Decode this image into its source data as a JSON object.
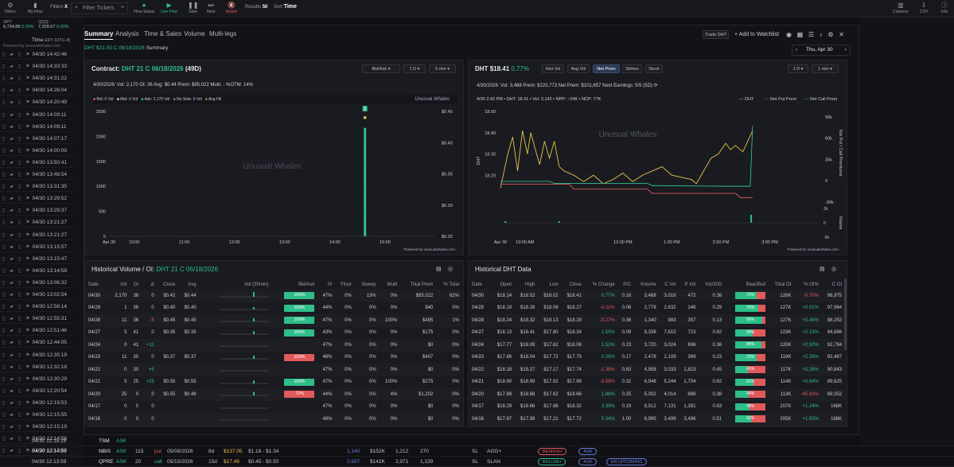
{
  "topbar": {
    "items": [
      {
        "label": "Filters",
        "icon": "gear-icon"
      },
      {
        "label": "My Flow",
        "icon": "bookmark-icon"
      },
      {
        "label": "Filters",
        "icon": "filter-icon"
      },
      {
        "label": "Flow Status",
        "icon": "status-icon"
      },
      {
        "label": "Live Flow",
        "icon": "play-icon"
      },
      {
        "label": "Slow",
        "icon": "pause-icon"
      },
      {
        "label": "Next",
        "icon": "next-icon"
      },
      {
        "label": "Muted",
        "icon": "mute-icon"
      },
      {
        "label": "Results",
        "icon": ""
      },
      {
        "label": "Sort",
        "icon": ""
      },
      {
        "label": "Columns",
        "icon": "columns-icon"
      },
      {
        "label": "CSV",
        "icon": "download-icon"
      },
      {
        "label": "Info",
        "icon": "info-icon"
      }
    ],
    "filters_value": "X",
    "search_placeholder": "Filter Tickers",
    "results_value": "50",
    "sort_value": "Time"
  },
  "left": {
    "idx": [
      {
        "name": "SPY",
        "val": "6,734.89",
        "chg": "0.00%"
      },
      {
        "name": "QQQ",
        "val": "7,209.07",
        "chg": "0.00%"
      }
    ],
    "time_header": "Time",
    "tz": "EDT (UTC-4)",
    "powered": "Powered by unusualwhales.com",
    "times": [
      "04/30 14:42:46",
      "04/30 14:33:33",
      "04/30 14:31:22",
      "04/30 14:26:04",
      "04/30 14:20:49",
      "04/30 14:09:11",
      "04/30 14:09:11",
      "04/30 14:07:17",
      "04/30 14:00:09",
      "04/30 13:50:41",
      "04/30 13:49:54",
      "04/30 13:31:35",
      "04/30 13:29:52",
      "04/30 13:29:37",
      "04/30 13:21:27",
      "04/30 13:21:27",
      "04/30 13:15:57",
      "04/30 13:15:47",
      "04/30 13:14:58",
      "04/30 13:06:32",
      "04/30 13:02:54",
      "04/30 12:56:14",
      "04/30 12:55:31",
      "04/30 12:51:46",
      "04/30 12:44:05",
      "04/30 12:35:19",
      "04/30 12:32:18",
      "04/30 12:30:29",
      "04/30 12:20:54",
      "04/30 12:19:53",
      "04/30 12:15:55",
      "04/30 12:15:19",
      "04/30 12:14:59",
      "04/30 12:13:59"
    ]
  },
  "modal": {
    "tabs": [
      "Summary",
      "Analysis",
      "Time & Sales",
      "Volume",
      "Multi-legs"
    ],
    "subtitle_contract": "DHT $21.00 C 06/18/2026",
    "subtitle_tail": "Summary",
    "trade_btn": "Trade DHT",
    "watchlist": "+ Add to Watchlist",
    "date_nav": "Thu, Apr 30"
  },
  "contract_chart": {
    "label": "Contract:",
    "name": "DHT 21 C 06/18/2026",
    "dte": "(49D)",
    "sel1": "Bid/Ask",
    "sel2": "1 D",
    "sel3": "5 min",
    "stats": "4/30/2026:  Vol: 2,170  OI: 36  Avg: $0.44  Prem: $95,022  Multi: -  %OTM: 14%",
    "legend": [
      "Bid: 0 Vol",
      "Mid: 0 Vol",
      "Ask: 2,170 Vol",
      "No Side: 0 Vol",
      "Avg Fill"
    ],
    "brand": "Unusual Whales",
    "watermark": "Unusual Whales",
    "powered": "Powered by unusualwhales.com",
    "note": "S"
  },
  "stock_chart": {
    "ticker": "DHT",
    "price": "$18.41",
    "chg": "0.77%",
    "tabs": [
      "Hist Vol",
      "Avg Vol",
      "Net Prem",
      "Strikes",
      "Stock"
    ],
    "sel1": "1 D",
    "sel2": "1 min",
    "stats": "4/30/2026:  Vol: 3,488  Prem: $220,773  Net Prem: $101,657  Next Earnings: 5/5 (5D)",
    "net_prem_value": "$101,657",
    "hover": "4/30 2:42 PM • DHT: 18.41 • Vol: 2,142 • NPP: ~24K • NCP: 77K",
    "legend": [
      "DHT",
      "Net Put Prem",
      "Net Call Prem"
    ],
    "watermark": "Unusual Whales",
    "powered": "Powered by unusualwhales.com",
    "ylabel_left": "DHT",
    "ylabel_right": "Net Put / Call Premiums",
    "ylabel_vol": "Volume"
  },
  "hist_vol": {
    "title": "Historical Volume / OI:",
    "contract": "DHT 21 C 06/18/2026",
    "powered": "Powered by unusualwhales.com",
    "headers": [
      "Date",
      "Vol",
      "OI",
      "Δ",
      "Close",
      "Avg",
      "Vol (30min)",
      "Bid/Ask",
      "IV",
      "Floor",
      "Sweep",
      "Multi",
      "Total Prem",
      "% Total"
    ],
    "rows": [
      [
        "04/30",
        "2,170",
        "36",
        "0",
        "$0.42",
        "$0.44",
        "",
        "100%",
        "47%",
        "0%",
        "13%",
        "0%",
        "$95,022",
        "62%"
      ],
      [
        "04/29",
        "1",
        "36",
        "0",
        "$0.40",
        "$0.40",
        "",
        "100%",
        "44%",
        "0%",
        "0%",
        "0%",
        "$40",
        "0%"
      ],
      [
        "04/28",
        "11",
        "36",
        "-5",
        "$0.45",
        "$0.45",
        "",
        "100%",
        "47%",
        "0%",
        "0%",
        "100%",
        "$495",
        "1%"
      ],
      [
        "04/27",
        "5",
        "41",
        "0",
        "$0.35",
        "$0.35",
        "",
        "100%",
        "43%",
        "0%",
        "0%",
        "0%",
        "$175",
        "0%"
      ],
      [
        "04/24",
        "0",
        "41",
        "+11",
        "",
        "",
        "",
        "",
        "47%",
        "0%",
        "0%",
        "0%",
        "$0",
        "0%"
      ],
      [
        "04/23",
        "11",
        "30",
        "0",
        "$0.37",
        "$0.37",
        "",
        "100%",
        "48%",
        "0%",
        "0%",
        "0%",
        "$407",
        "0%"
      ],
      [
        "04/22",
        "0",
        "30",
        "+5",
        "",
        "",
        "",
        "",
        "47%",
        "0%",
        "0%",
        "0%",
        "$0",
        "0%"
      ],
      [
        "04/21",
        "5",
        "25",
        "+25",
        "$0.55",
        "$0.55",
        "",
        "100%",
        "47%",
        "0%",
        "0%",
        "100%",
        "$275",
        "0%"
      ],
      [
        "04/20",
        "25",
        "0",
        "0",
        "$0.55",
        "$0.48",
        "",
        "72%",
        "44%",
        "0%",
        "0%",
        "4%",
        "$1,202",
        "0%"
      ],
      [
        "04/17",
        "0",
        "0",
        "0",
        "",
        "",
        "",
        "",
        "47%",
        "0%",
        "0%",
        "0%",
        "$0",
        "0%"
      ],
      [
        "04/16",
        "0",
        "0",
        "0",
        "",
        "",
        "",
        "",
        "48%",
        "0%",
        "0%",
        "0%",
        "$0",
        "0%"
      ]
    ]
  },
  "hist_dht": {
    "title": "Historical DHT Data",
    "powered": "Powered by unusualwhales.com",
    "headers": [
      "Date",
      "Open",
      "High",
      "Low",
      "Close",
      "% Change",
      "P/C",
      "Volume",
      "C Vol",
      "P Vol",
      "Vol/30D",
      "Bear/Bull",
      "Total OI",
      "% OI%",
      "C OI",
      "P OI"
    ],
    "rows": [
      [
        "04/30",
        "$18.14",
        "$18.52",
        "$18.02",
        "$18.41",
        "0.77%",
        "0.16",
        "3,488",
        "3,016",
        "472",
        "0.36",
        "72%",
        "126K",
        "-0.70%",
        "96,975",
        "28,9"
      ],
      [
        "04/29",
        "$18.19",
        "$18.28",
        "$18.06",
        "$18.27",
        "-0.11%",
        "0.06",
        "2,778",
        "2,632",
        "146",
        "0.29",
        "75%",
        "127K",
        "+0.01%",
        "97,964",
        "28,5"
      ],
      [
        "04/28",
        "$18.24",
        "$18.32",
        "$18.13",
        "$18.29",
        "-0.27%",
        "0.36",
        "1,340",
        "983",
        "357",
        "0.13",
        "90%",
        "127K",
        "+3.46%",
        "98,253",
        "28,8"
      ],
      [
        "04/27",
        "$18.13",
        "$18.41",
        "$17.80",
        "$18.34",
        "1.55%",
        "0.09",
        "8,338",
        "7,615",
        "723",
        "0.82",
        "58%",
        "123K",
        "+2.13%",
        "94,886",
        "27,8"
      ],
      [
        "04/24",
        "$17.77",
        "$18.09",
        "$17.62",
        "$18.06",
        "1.52%",
        "0.23",
        "3,720",
        "3,024",
        "696",
        "0.36",
        "86%",
        "120K",
        "+0.50%",
        "92,794",
        "27,8"
      ],
      [
        "04/23",
        "$17.86",
        "$18.04",
        "$17.72",
        "$17.79",
        "0.28%",
        "0.17",
        "2,478",
        "2,109",
        "369",
        "0.23",
        "72%",
        "119K",
        "+2.26%",
        "92,487",
        "26,9"
      ],
      [
        "04/22",
        "$18.18",
        "$18.27",
        "$17.17",
        "$17.74",
        "-1.38%",
        "0.63",
        "4,958",
        "3,033",
        "1,823",
        "0.45",
        "41%",
        "117K",
        "+2.26%",
        "90,843",
        "25,8"
      ],
      [
        "04/21",
        "$18.90",
        "$18.99",
        "$17.92",
        "$17.99",
        "-3.59%",
        "0.32",
        "6,948",
        "5,244",
        "1,704",
        "0.62",
        "61%",
        "114K",
        "+0.84%",
        "89,625",
        "24,3"
      ],
      [
        "04/20",
        "$17.88",
        "$18.68",
        "$17.62",
        "$18.66",
        "1.86%",
        "0.25",
        "5,002",
        "4,014",
        "988",
        "0.38",
        "44%",
        "113K",
        "-45.43%",
        "89,352",
        "23,6"
      ],
      [
        "04/17",
        "$18.29",
        "$18.66",
        "$17.86",
        "$18.32",
        "3.39%",
        "0.19",
        "8,512",
        "7,131",
        "1,381",
        "0.63",
        "48%",
        "207K",
        "+1.24%",
        "168K",
        "39,3"
      ],
      [
        "04/16",
        "$17.67",
        "$17.89",
        "$17.21",
        "$17.72",
        "0.34%",
        "1.00",
        "6,995",
        "3,499",
        "3,496",
        "0.51",
        "52%",
        "205K",
        "+1.93%",
        "168K",
        "39,3"
      ]
    ]
  },
  "bottom_rows": [
    {
      "time": "04/30 12:15:19",
      "tk": "TSM",
      "side": "ASK",
      "sz": "",
      "type": "",
      "exp": "",
      "dte": "",
      "spot": "",
      "bidask": "",
      "vol": "",
      "prem": "",
      "oi": "",
      "sl": "",
      "tags": []
    },
    {
      "time": "04/30 12:14:59",
      "tk": "NBIS",
      "side": "ASK",
      "sz": "115",
      "type": "put",
      "exp": "05/08/2026",
      "dte": "8d",
      "spot": "$137.05",
      "bidask": "$1.18 - $1.34",
      "vol": "1,140",
      "prem": "$152K",
      "oi": "1,212",
      "sl": "270",
      "tags": [
        "BEARISH",
        "ASK"
      ]
    },
    {
      "time": "04/30 12:13:59",
      "tk": "QPRE",
      "side": "ASK",
      "sz": "20",
      "type": "call",
      "exp": "05/15/2026",
      "dte": "15d",
      "spot": "$17.49",
      "bidask": "$0.45 - $0.50",
      "vol": "2,997",
      "prem": "$142K",
      "oi": "2,971",
      "sl": "1,139",
      "tags": [
        "BULLISH",
        "ASK",
        "ER UPCOMING"
      ]
    }
  ],
  "bottom_extra": [
    "SL",
    "AGG+",
    "SL",
    "SLAN"
  ],
  "colors": {
    "accent": "#2fbe8a",
    "bear": "#e05a5a",
    "price": "#e8c34a",
    "bg": "#1a1b21"
  }
}
